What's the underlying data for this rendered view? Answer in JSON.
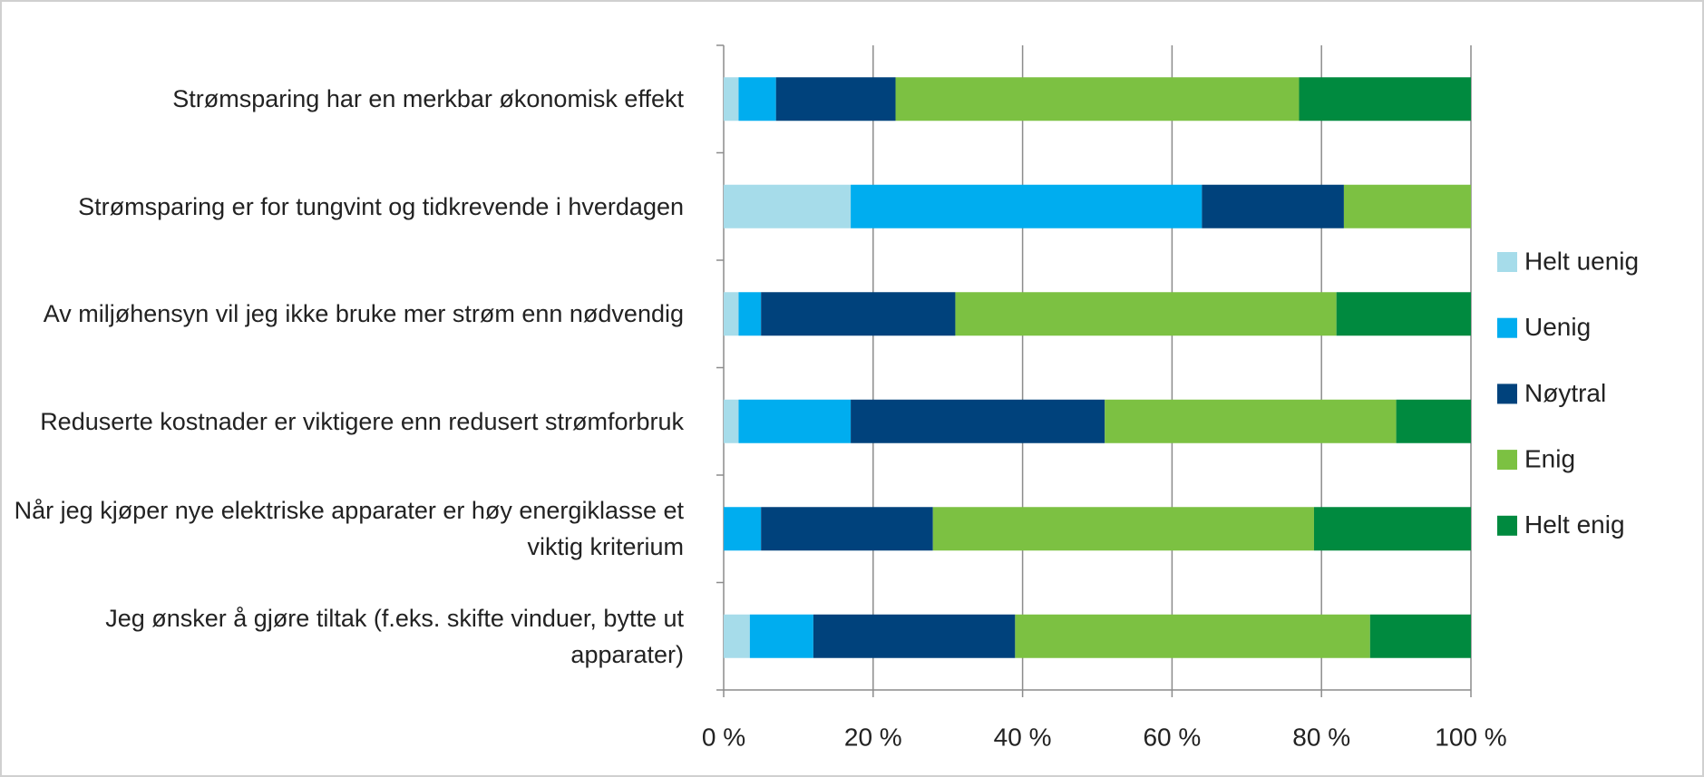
{
  "chart_data": {
    "type": "stacked_barh",
    "categories": [
      "Strømsparing har en merkbar økonomisk effekt",
      "Strømsparing er for tungvint og tidkrevende i hverdagen",
      "Av miljøhensyn vil jeg ikke bruke mer strøm enn nødvendig",
      "Reduserte kostnader er viktigere enn redusert strømforbruk",
      "Når jeg kjøper nye elektriske apparater er høy energiklasse et viktig kriterium",
      "Jeg ønsker å gjøre tiltak (f.eks. skifte vinduer, bytte ut apparater)"
    ],
    "series": [
      {
        "name": "Helt uenig",
        "color": "#a6dcea",
        "values": [
          2,
          17,
          2,
          2,
          0,
          3.5
        ]
      },
      {
        "name": "Uenig",
        "color": "#00adef",
        "values": [
          5,
          47,
          3,
          15,
          5,
          8.5
        ]
      },
      {
        "name": "Nøytral",
        "color": "#00427c",
        "values": [
          16,
          19,
          26,
          34,
          23,
          27
        ]
      },
      {
        "name": "Enig",
        "color": "#7cc142",
        "values": [
          54,
          17,
          51,
          39,
          51,
          47.5
        ]
      },
      {
        "name": "Helt enig",
        "color": "#008a3f",
        "values": [
          23,
          0,
          18,
          10,
          21,
          13.5
        ]
      }
    ],
    "xlim": [
      0,
      100
    ],
    "xticks": [
      {
        "value": 0,
        "label": "0 %"
      },
      {
        "value": 20,
        "label": "20 %"
      },
      {
        "value": 40,
        "label": "40 %"
      },
      {
        "value": 60,
        "label": "60 %"
      },
      {
        "value": 80,
        "label": "80 %"
      },
      {
        "value": 100,
        "label": "100 %"
      }
    ],
    "grid": true,
    "legend": "right"
  }
}
